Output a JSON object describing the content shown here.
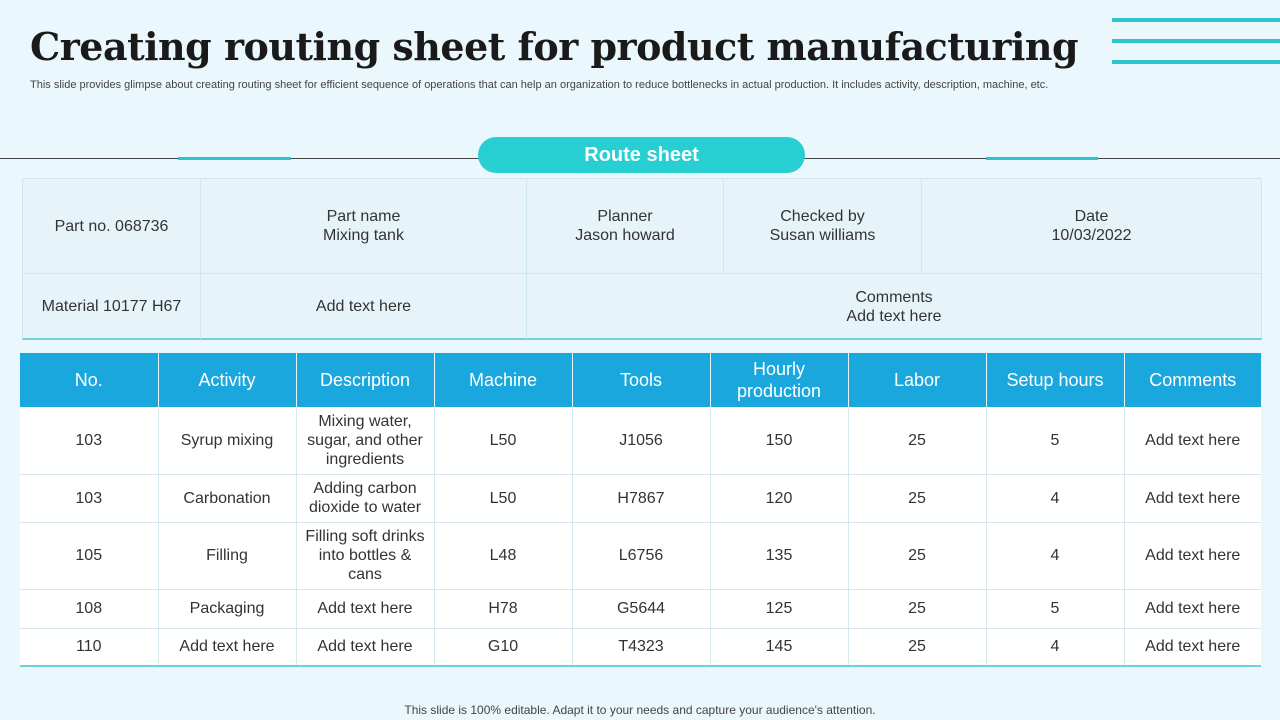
{
  "header": {
    "title": "Creating routing sheet for product manufacturing",
    "subtitle": "This slide provides glimpse about creating routing sheet for efficient sequence of operations that can help an organization to reduce bottlenecks in actual production. It includes activity, description, machine, etc."
  },
  "route_sheet_label": "Route sheet",
  "info": {
    "part_no": "Part no. 068736",
    "part_name_label": "Part name",
    "part_name_value": "Mixing tank",
    "planner_label": "Planner",
    "planner_value": "Jason howard",
    "checked_label": "Checked by",
    "checked_value": "Susan williams",
    "date_label": "Date",
    "date_value": "10/03/2022",
    "material": "Material 10177 H67",
    "material_text": "Add text here",
    "comments_label": "Comments",
    "comments_value": "Add text here"
  },
  "table": {
    "headers": [
      "No.",
      "Activity",
      "Description",
      "Machine",
      "Tools",
      "Hourly production",
      "Labor",
      "Setup hours",
      "Comments"
    ],
    "rows": [
      [
        "103",
        "Syrup mixing",
        "Mixing water, sugar, and other ingredients",
        "L50",
        "J1056",
        "150",
        "25",
        "5",
        "Add text here"
      ],
      [
        "103",
        "Carbonation",
        "Adding carbon dioxide to water",
        "L50",
        "H7867",
        "120",
        "25",
        "4",
        "Add text here"
      ],
      [
        "105",
        "Filling",
        "Filling soft drinks into bottles & cans",
        "L48",
        "L6756",
        "135",
        "25",
        "4",
        "Add text here"
      ],
      [
        "108",
        "Packaging",
        "Add text here",
        "H78",
        "G5644",
        "125",
        "25",
        "5",
        "Add text here"
      ],
      [
        "110",
        "Add text here",
        "Add text here",
        "G10",
        "T4323",
        "145",
        "25",
        "4",
        "Add text here"
      ]
    ]
  },
  "footer": "This slide is 100% editable. Adapt it to your needs and capture your audience's attention."
}
